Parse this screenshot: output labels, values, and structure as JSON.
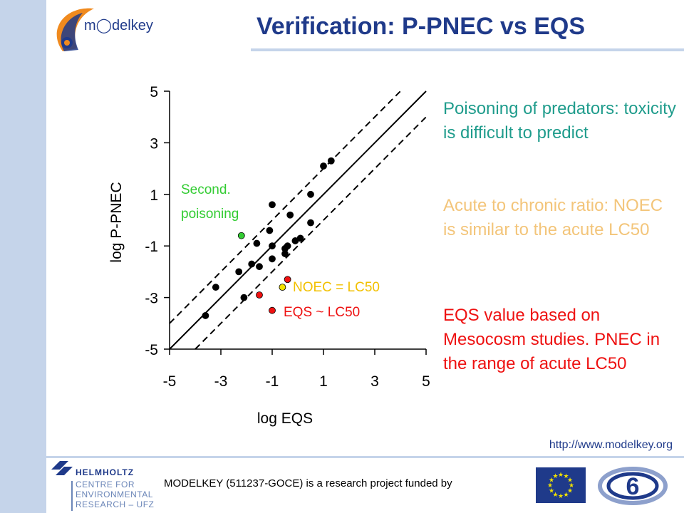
{
  "title": "Verification: P-PNEC vs EQS",
  "logo_text": "m◯delkey",
  "text_blocks": [
    {
      "text": "Poisoning of predators: toxicity is difficult to predict",
      "color": "#1f9c8c"
    },
    {
      "text": "Acute to chronic ratio: NOEC is similar to the acute LC50",
      "color": "#f3c57a"
    },
    {
      "text": "EQS value based on Mesocosm studies. PNEC in the range of acute LC50",
      "color": "#ee1111"
    }
  ],
  "url": "http://www.modelkey.org",
  "footer": {
    "funded_text": "MODELKEY (511237-GOCE) is a research project funded by",
    "ufz_text": "HELMHOLTZ CENTRE FOR ENVIRONMENTAL RESEARCH – UFZ"
  },
  "chart_data": {
    "type": "scatter",
    "xlabel": "log EQS",
    "ylabel": "log P-PNEC",
    "xlim": [
      -5,
      5
    ],
    "ylim": [
      -5,
      5
    ],
    "xticks": [
      -5,
      -3,
      -1,
      1,
      3,
      5
    ],
    "yticks": [
      -5,
      -3,
      -1,
      1,
      3,
      5
    ],
    "reference_lines": [
      {
        "style": "solid",
        "offset": 0
      },
      {
        "style": "dashed",
        "offset": 1
      },
      {
        "style": "dashed",
        "offset": -1
      }
    ],
    "series": [
      {
        "color": "#000000",
        "points": [
          [
            -3.6,
            -3.7
          ],
          [
            -3.2,
            -2.6
          ],
          [
            -2.1,
            -3.0
          ],
          [
            -2.3,
            -2.0
          ],
          [
            -1.8,
            -1.7
          ],
          [
            -1.5,
            -1.8
          ],
          [
            -1.6,
            -0.9
          ],
          [
            -1.1,
            -0.4
          ],
          [
            -1.0,
            -1.0
          ],
          [
            -1.0,
            -1.5
          ],
          [
            -0.5,
            -1.3
          ],
          [
            -0.5,
            -1.1
          ],
          [
            -0.4,
            -1.0
          ],
          [
            -0.3,
            0.2
          ],
          [
            -0.1,
            -0.8
          ],
          [
            0.1,
            -0.7
          ],
          [
            0.5,
            -0.1
          ],
          [
            0.5,
            1.0
          ],
          [
            1.0,
            2.1
          ],
          [
            1.3,
            2.3
          ],
          [
            -1.0,
            0.6
          ]
        ]
      },
      {
        "color": "#ee1111",
        "points": [
          [
            -1.5,
            -2.9
          ],
          [
            -0.4,
            -2.3
          ],
          [
            -1.0,
            -3.5
          ]
        ]
      },
      {
        "color": "#f2e200",
        "points": [
          [
            -0.6,
            -2.6
          ]
        ]
      },
      {
        "color": "#33cc33",
        "points": [
          [
            -2.2,
            -0.6
          ]
        ]
      }
    ],
    "annotations": [
      {
        "text": "Second. poisoning",
        "color": "#33cc33"
      },
      {
        "text": "NOEC = LC50",
        "color": "#f2c000"
      },
      {
        "text": "EQS ~ LC50",
        "color": "#ee1111"
      }
    ],
    "grid": false,
    "legend": "none"
  }
}
